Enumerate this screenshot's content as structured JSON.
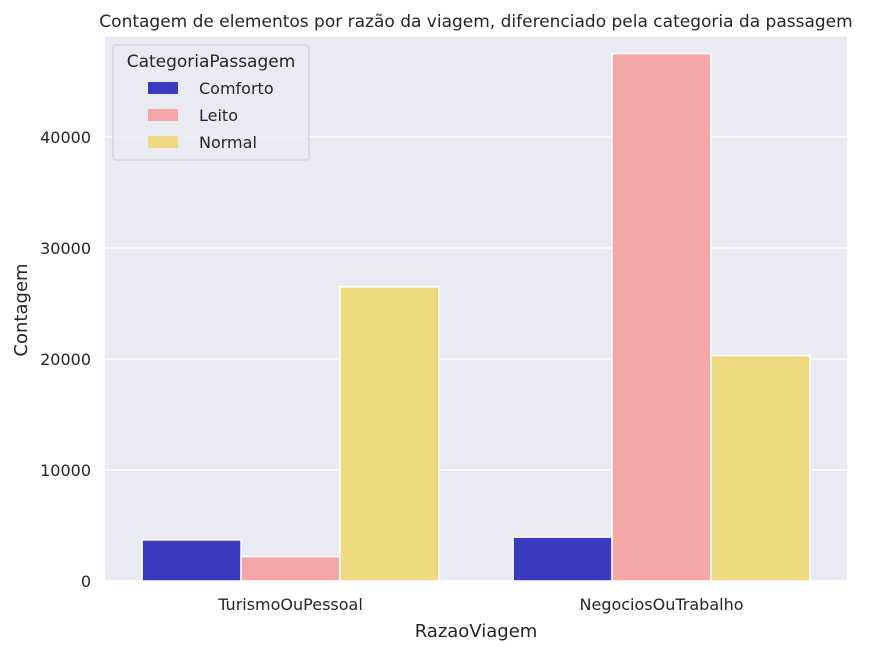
{
  "chart_data": {
    "type": "bar",
    "title": "Contagem de elementos por razão da viagem, diferenciado pela categoria da passagem",
    "xlabel": "RazaoViagem",
    "ylabel": "Contagem",
    "categories": [
      "TurismoOuPessoal",
      "NegociosOuTrabalho"
    ],
    "series": [
      {
        "name": "Comforto",
        "color": "#3a3bbe",
        "values": [
          3700,
          3950
        ]
      },
      {
        "name": "Leito",
        "color": "#f3a7a7",
        "values": [
          2200,
          47500
        ]
      },
      {
        "name": "Normal",
        "color": "#eed981",
        "values": [
          26500,
          20300
        ]
      }
    ],
    "ylim": [
      0,
      49000
    ],
    "yticks": [
      0,
      10000,
      20000,
      30000,
      40000
    ],
    "ytick_labels": [
      "0",
      "10000",
      "20000",
      "30000",
      "40000"
    ],
    "legend_title": "CategoriaPassagem",
    "legend_position": "top-left",
    "grid": true,
    "plot_background": "#eaeaf2"
  }
}
